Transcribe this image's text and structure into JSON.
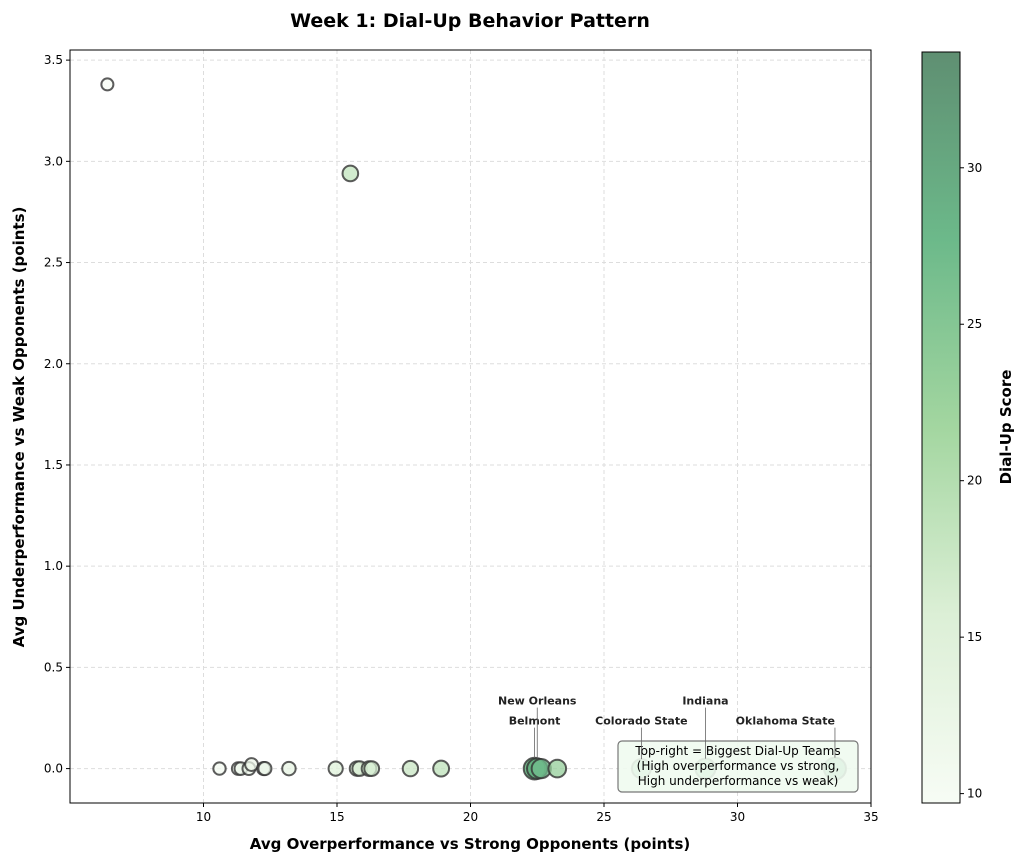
{
  "chart_data": {
    "type": "scatter",
    "title": "Week 1: Dial-Up Behavior Pattern",
    "xlabel": "Avg Overperformance vs Strong Opponents (points)",
    "ylabel": "Avg Underperformance vs Weak Opponents (points)",
    "xlim": [
      5,
      35
    ],
    "ylim": [
      -0.17,
      3.55
    ],
    "xticks": [
      "10",
      "15",
      "20",
      "25",
      "30",
      "35"
    ],
    "yticks": [
      "0.0",
      "0.5",
      "1.0",
      "1.5",
      "2.0",
      "2.5",
      "3.0",
      "3.5"
    ],
    "grid": true,
    "colorbar": {
      "label": "Dial-Up Score",
      "range": [
        9.7,
        33.7
      ],
      "ticks": [
        "10",
        "15",
        "20",
        "25",
        "30"
      ]
    },
    "points": [
      {
        "x": 6.4,
        "y": 3.38,
        "score": 9.8
      },
      {
        "x": 15.5,
        "y": 2.94,
        "score": 18.4
      },
      {
        "x": 10.6,
        "y": 0,
        "score": 10.6
      },
      {
        "x": 11.3,
        "y": 0,
        "score": 11.3
      },
      {
        "x": 11.4,
        "y": 0,
        "score": 11.4
      },
      {
        "x": 11.7,
        "y": 0,
        "score": 11.7
      },
      {
        "x": 11.8,
        "y": 0.02,
        "score": 11.8
      },
      {
        "x": 12.25,
        "y": 0,
        "score": 12.3
      },
      {
        "x": 12.3,
        "y": 0,
        "score": 12.3
      },
      {
        "x": 13.2,
        "y": 0,
        "score": 13.2
      },
      {
        "x": 14.95,
        "y": 0,
        "score": 15.0
      },
      {
        "x": 15.75,
        "y": 0,
        "score": 15.8
      },
      {
        "x": 15.85,
        "y": 0,
        "score": 15.9
      },
      {
        "x": 16.2,
        "y": 0,
        "score": 16.2
      },
      {
        "x": 16.3,
        "y": 0,
        "score": 16.3
      },
      {
        "x": 17.75,
        "y": 0,
        "score": 17.8
      },
      {
        "x": 18.9,
        "y": 0,
        "score": 18.9
      },
      {
        "x": 22.4,
        "y": 0,
        "score": 33.0,
        "label": "Belmont"
      },
      {
        "x": 22.5,
        "y": 0,
        "score": 30.0,
        "label": "New Orleans"
      },
      {
        "x": 22.65,
        "y": 0,
        "score": 27.0
      },
      {
        "x": 23.25,
        "y": 0,
        "score": 23.3
      },
      {
        "x": 26.4,
        "y": 0,
        "score": 26.4,
        "label": "Colorado State"
      },
      {
        "x": 28.8,
        "y": 0,
        "score": 28.8,
        "label": "Indiana"
      },
      {
        "x": 33.65,
        "y": 0,
        "score": 33.7,
        "label": "Oklahoma State"
      }
    ],
    "annotation": [
      "Top-right = Biggest Dial-Up Teams",
      "(High overperformance vs strong,",
      "High underperformance vs weak)"
    ]
  }
}
